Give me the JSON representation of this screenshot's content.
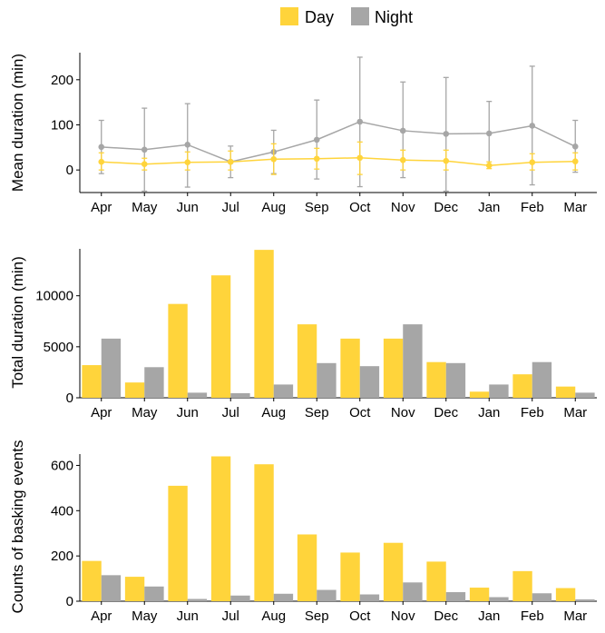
{
  "legend": {
    "items": [
      {
        "label": "Day",
        "color": "#FFD43B"
      },
      {
        "label": "Night",
        "color": "#A6A6A6"
      }
    ],
    "placement": "top-center"
  },
  "colors": {
    "day": "#FFD43B",
    "night": "#A6A6A6",
    "axis": "#000000"
  },
  "chart_data": [
    {
      "type": "line",
      "title": "",
      "xlabel": "",
      "ylabel": "Mean duration (min)",
      "categories": [
        "Apr",
        "May",
        "Jun",
        "Jul",
        "Aug",
        "Sep",
        "Oct",
        "Nov",
        "Dec",
        "Jan",
        "Feb",
        "Mar"
      ],
      "ylim": [
        -50,
        260
      ],
      "yticks": [
        0,
        100,
        200
      ],
      "grid": false,
      "series": [
        {
          "name": "Day",
          "values": [
            18,
            13,
            17,
            18,
            24,
            25,
            27,
            22,
            20,
            10,
            17,
            19
          ],
          "error_low": [
            0,
            0,
            0,
            0,
            -10,
            2,
            -10,
            0,
            0,
            3,
            0,
            0
          ],
          "error_high": [
            38,
            26,
            40,
            42,
            58,
            48,
            62,
            44,
            44,
            18,
            36,
            38
          ]
        },
        {
          "name": "Night",
          "values": [
            51,
            45,
            56,
            18,
            40,
            67,
            107,
            87,
            80,
            81,
            98,
            52
          ],
          "error_low": [
            -8,
            -47,
            -38,
            -17,
            -8,
            -20,
            -37,
            -17,
            -47,
            10,
            -33,
            -5
          ],
          "error_high": [
            110,
            137,
            147,
            53,
            88,
            155,
            250,
            195,
            205,
            152,
            230,
            110
          ]
        }
      ]
    },
    {
      "type": "bar",
      "title": "",
      "xlabel": "",
      "ylabel": "Total duration (min)",
      "categories": [
        "Apr",
        "May",
        "Jun",
        "Jul",
        "Aug",
        "Sep",
        "Oct",
        "Nov",
        "Dec",
        "Jan",
        "Feb",
        "Mar"
      ],
      "ylim": [
        0,
        14600
      ],
      "yticks": [
        0,
        5000,
        10000
      ],
      "grid": false,
      "series": [
        {
          "name": "Day",
          "values": [
            3200,
            1500,
            9200,
            12000,
            14500,
            7200,
            5800,
            5800,
            3500,
            600,
            2300,
            1100
          ]
        },
        {
          "name": "Night",
          "values": [
            5800,
            3000,
            500,
            450,
            1300,
            3400,
            3100,
            7200,
            3400,
            1300,
            3500,
            500
          ]
        }
      ]
    },
    {
      "type": "bar",
      "title": "",
      "xlabel": "",
      "ylabel": "Counts of basking events",
      "categories": [
        "Apr",
        "May",
        "Jun",
        "Jul",
        "Aug",
        "Sep",
        "Oct",
        "Nov",
        "Dec",
        "Jan",
        "Feb",
        "Mar"
      ],
      "ylim": [
        0,
        650
      ],
      "yticks": [
        0,
        200,
        400,
        600
      ],
      "grid": false,
      "series": [
        {
          "name": "Day",
          "values": [
            178,
            108,
            510,
            640,
            605,
            295,
            215,
            258,
            175,
            60,
            133,
            58
          ]
        },
        {
          "name": "Night",
          "values": [
            115,
            65,
            10,
            25,
            33,
            50,
            30,
            83,
            40,
            18,
            35,
            8
          ]
        }
      ]
    }
  ]
}
